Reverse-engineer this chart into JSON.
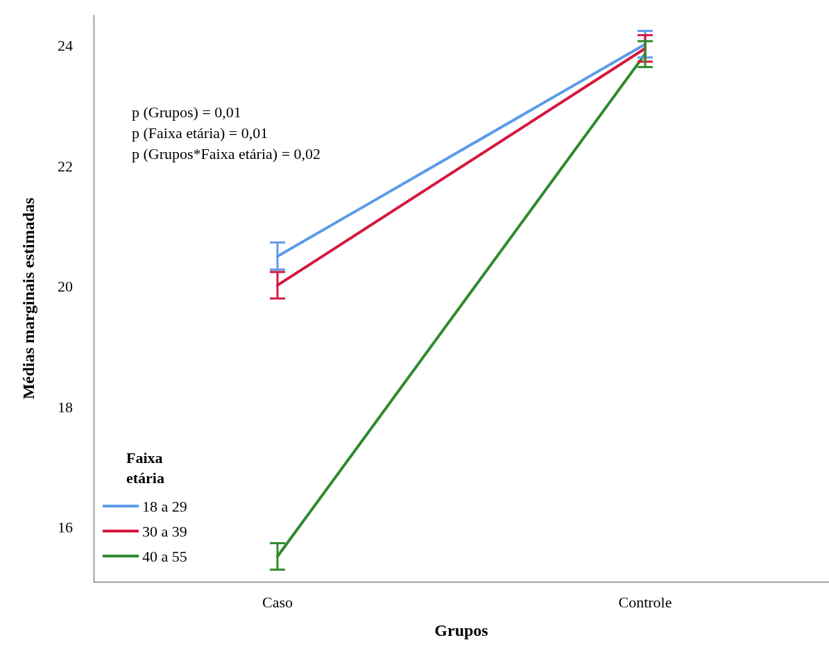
{
  "chart_data": {
    "type": "line",
    "xlabel": "Grupos",
    "ylabel": "Médias marginais estimadas",
    "legend_title": "Faixa etária",
    "categories": [
      "Caso",
      "Controle"
    ],
    "series": [
      {
        "name": "18 a 29",
        "color": "#5b9bea",
        "values": [
          20.5,
          24.02
        ],
        "errors": [
          [
            20.28,
            20.73
          ],
          [
            23.8,
            24.24
          ]
        ]
      },
      {
        "name": "30 a 39",
        "color": "#d6173f",
        "values": [
          20.02,
          23.95
        ],
        "errors": [
          [
            19.8,
            20.24
          ],
          [
            23.73,
            24.17
          ]
        ]
      },
      {
        "name": "40 a 55",
        "color": "#2e8b2e",
        "values": [
          15.52,
          23.86
        ],
        "errors": [
          [
            15.3,
            15.74
          ],
          [
            23.64,
            24.07
          ]
        ]
      }
    ],
    "ylim": [
      15.1,
      24.5
    ],
    "yticks": [
      16,
      18,
      20,
      22,
      24
    ],
    "grid": false,
    "legend": "bottom left",
    "marker": "none",
    "line_style": "solid",
    "annotations": [
      "p (Grupos) = 0,01",
      "p (Faixa etária) = 0,01",
      "p (Grupos*Faixa etária) = 0,02"
    ]
  }
}
